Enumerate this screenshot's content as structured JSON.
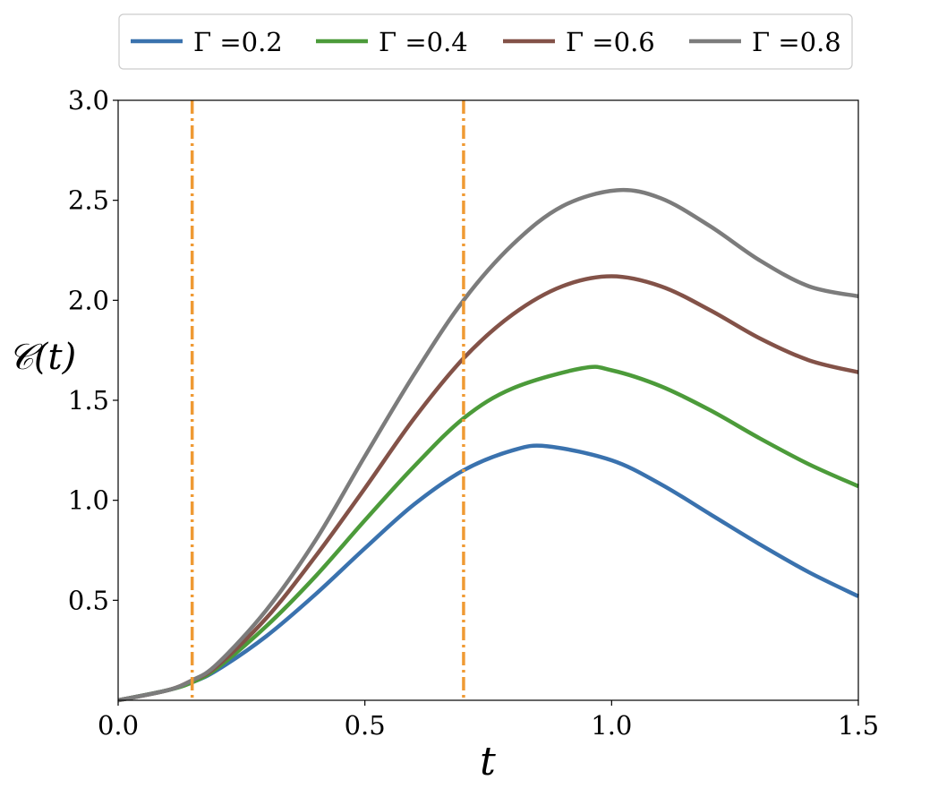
{
  "chart_data": {
    "type": "line",
    "xlabel": "t",
    "ylabel": "𝒞(t)",
    "xlim": [
      0.0,
      1.5
    ],
    "ylim": [
      0.0,
      3.0
    ],
    "x_ticks": [
      0.0,
      0.5,
      1.0,
      1.5
    ],
    "x_tick_labels": [
      "0.0",
      "0.5",
      "1.0",
      "1.5"
    ],
    "y_ticks": [
      0.5,
      1.0,
      1.5,
      2.0,
      2.5,
      3.0
    ],
    "y_tick_labels": [
      "0.5",
      "1.0",
      "1.5",
      "2.0",
      "2.5",
      "3.0"
    ],
    "grid": false,
    "legend_position": "top-center, outside plot",
    "vlines": [
      {
        "x": 0.15,
        "color": "#ef9a34",
        "style": "dash-dot"
      },
      {
        "x": 0.7,
        "color": "#ef9a34",
        "style": "dash-dot"
      }
    ],
    "series": [
      {
        "name": "Γ =0.2",
        "color": "#3a72ae",
        "x": [
          0.0,
          0.1,
          0.15,
          0.2,
          0.3,
          0.4,
          0.5,
          0.6,
          0.7,
          0.8,
          0.87,
          1.0,
          1.1,
          1.2,
          1.3,
          1.4,
          1.5
        ],
        "y": [
          0.0,
          0.05,
          0.09,
          0.15,
          0.32,
          0.53,
          0.76,
          0.98,
          1.15,
          1.25,
          1.27,
          1.2,
          1.08,
          0.93,
          0.78,
          0.64,
          0.52
        ]
      },
      {
        "name": "Γ =0.4",
        "color": "#4c9b3a",
        "x": [
          0.0,
          0.1,
          0.15,
          0.2,
          0.3,
          0.4,
          0.5,
          0.6,
          0.7,
          0.8,
          0.94,
          1.0,
          1.1,
          1.2,
          1.3,
          1.4,
          1.5
        ],
        "y": [
          0.0,
          0.05,
          0.09,
          0.16,
          0.37,
          0.62,
          0.9,
          1.17,
          1.41,
          1.56,
          1.66,
          1.65,
          1.57,
          1.45,
          1.31,
          1.18,
          1.07
        ]
      },
      {
        "name": "Γ =0.6",
        "color": "#835248",
        "x": [
          0.0,
          0.1,
          0.15,
          0.2,
          0.3,
          0.4,
          0.5,
          0.6,
          0.7,
          0.8,
          0.9,
          1.0,
          1.1,
          1.2,
          1.3,
          1.4,
          1.5
        ],
        "y": [
          0.0,
          0.05,
          0.1,
          0.17,
          0.41,
          0.72,
          1.06,
          1.41,
          1.71,
          1.93,
          2.07,
          2.12,
          2.07,
          1.95,
          1.81,
          1.7,
          1.64
        ]
      },
      {
        "name": "Γ =0.8",
        "color": "#7c7c7c",
        "x": [
          0.0,
          0.1,
          0.15,
          0.2,
          0.3,
          0.4,
          0.5,
          0.6,
          0.7,
          0.8,
          0.9,
          1.01,
          1.1,
          1.2,
          1.3,
          1.4,
          1.5
        ],
        "y": [
          0.0,
          0.05,
          0.1,
          0.18,
          0.45,
          0.8,
          1.22,
          1.63,
          2.0,
          2.28,
          2.47,
          2.55,
          2.51,
          2.37,
          2.2,
          2.07,
          2.02
        ]
      }
    ]
  }
}
